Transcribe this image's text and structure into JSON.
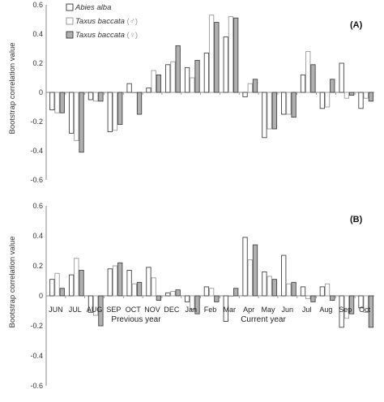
{
  "chart_data": [
    {
      "type": "bar",
      "panel_label": "(A)",
      "ylabel": "Bootstrap correlation value",
      "ylim": [
        -0.6,
        0.6
      ],
      "yticks": [
        "0.6",
        "0.4",
        "0.2",
        "0",
        "-0.2",
        "-0.4",
        "-0.6"
      ],
      "legend": {
        "placement": "top-left",
        "entries": [
          {
            "name": "Abies alba",
            "suffix": ""
          },
          {
            "name": "Taxus baccata",
            "suffix": " (♂)"
          },
          {
            "name": "Taxus baccata",
            "suffix": " (♀)"
          }
        ]
      },
      "series": [
        {
          "values": [
            -0.12,
            -0.28,
            -0.05,
            -0.27,
            0.06,
            0.03,
            0.19,
            0.17,
            0.27,
            0.38,
            -0.03,
            -0.31,
            -0.15,
            0.12,
            -0.11,
            0.2,
            -0.11
          ]
        },
        {
          "values": [
            -0.14,
            -0.33,
            -0.06,
            -0.26,
            0.0,
            0.15,
            0.21,
            0.1,
            0.53,
            0.52,
            0.06,
            -0.25,
            -0.15,
            0.28,
            -0.1,
            -0.04,
            -0.04
          ]
        },
        {
          "values": [
            -0.14,
            -0.41,
            -0.06,
            -0.22,
            -0.15,
            0.12,
            0.32,
            0.22,
            0.48,
            0.51,
            0.09,
            -0.25,
            -0.17,
            0.19,
            0.09,
            -0.02,
            -0.06
          ]
        }
      ]
    },
    {
      "type": "bar",
      "panel_label": "(B)",
      "ylabel": "Bootstrap correlation value",
      "ylim": [
        -0.6,
        0.6
      ],
      "yticks": [
        "0.6",
        "0.4",
        "0.2",
        "0",
        "-0.2",
        "-0.4",
        "-0.6"
      ],
      "categories": [
        "JUN",
        "JUL",
        "AUG",
        "SEP",
        "OCT",
        "NOV",
        "DEC",
        "Jan",
        "Feb",
        "Mar",
        "Apr",
        "May",
        "Jun",
        "Jul",
        "Aug",
        "Sep",
        "Oct"
      ],
      "period_labels": [
        "Previous year",
        "Current year"
      ],
      "series": [
        {
          "values": [
            0.11,
            0.14,
            -0.11,
            0.18,
            0.17,
            0.19,
            0.02,
            -0.04,
            0.06,
            -0.17,
            0.39,
            0.16,
            0.27,
            0.06,
            0.06,
            -0.21,
            -0.08
          ]
        },
        {
          "values": [
            0.15,
            0.25,
            -0.13,
            0.2,
            0.08,
            0.12,
            0.03,
            -0.09,
            0.05,
            0.0,
            0.24,
            0.13,
            0.08,
            -0.02,
            0.08,
            -0.15,
            -0.11
          ]
        },
        {
          "values": [
            0.05,
            0.17,
            -0.2,
            0.22,
            0.09,
            -0.03,
            0.04,
            -0.12,
            -0.04,
            0.05,
            0.34,
            0.11,
            0.09,
            -0.04,
            -0.03,
            -0.12,
            -0.21
          ]
        }
      ]
    }
  ],
  "styles": {
    "series_fill": [
      "#ffffff",
      "#ffffff",
      "#b0b0b0"
    ],
    "series_stroke": [
      "#444444",
      "#999999",
      "#444444"
    ],
    "axis_color": "#888888"
  }
}
